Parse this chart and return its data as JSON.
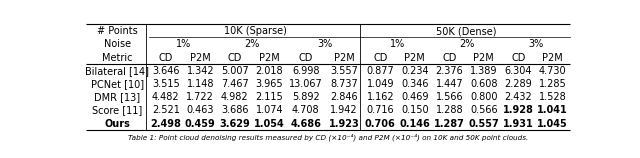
{
  "header_row1_left": "# Points",
  "header_row2_left": "Noise",
  "header_row3_left": "Metric",
  "span_10k_label": "10K (Sparse)",
  "span_50k_label": "50K (Dense)",
  "pct_labels": [
    "1%",
    "2%",
    "3%",
    "1%",
    "2%",
    "3%"
  ],
  "col_labels": [
    "CD",
    "P2M",
    "CD",
    "P2M",
    "CD",
    "P2M",
    "CD",
    "P2M",
    "CD",
    "P2M",
    "CD",
    "P2M"
  ],
  "rows": [
    [
      "Bilateral [14]",
      "3.646",
      "1.342",
      "5.007",
      "2.018",
      "6.998",
      "3.557",
      "0.877",
      "0.234",
      "2.376",
      "1.389",
      "6.304",
      "4.730"
    ],
    [
      "PCNet [10]",
      "3.515",
      "1.148",
      "7.467",
      "3.965",
      "13.067",
      "8.737",
      "1.049",
      "0.346",
      "1.447",
      "0.608",
      "2.289",
      "1.285"
    ],
    [
      "DMR [13]",
      "4.482",
      "1.722",
      "4.982",
      "2.115",
      "5.892",
      "2.846",
      "1.162",
      "0.469",
      "1.566",
      "0.800",
      "2.432",
      "1.528"
    ],
    [
      "Score [11]",
      "2.521",
      "0.463",
      "3.686",
      "1.074",
      "4.708",
      "1.942",
      "0.716",
      "0.150",
      "1.288",
      "0.566",
      "1.928",
      "1.041"
    ],
    [
      "Ours",
      "2.498",
      "0.459",
      "3.629",
      "1.054",
      "4.686",
      "1.923",
      "0.706",
      "0.146",
      "1.287",
      "0.557",
      "1.931",
      "1.045"
    ]
  ],
  "bold_ours": [
    0,
    1,
    2,
    3,
    4,
    5,
    6,
    7,
    8,
    9,
    10,
    11,
    12
  ],
  "bold_score": [
    11,
    12
  ],
  "caption": "Table 1: Point cloud denoising results measured by CD (×10⁻⁴) and P2M (×10⁻⁴) on 10K and 50K point clouds.",
  "bg_color": "#ffffff",
  "font_size": 7.0,
  "caption_font_size": 5.2
}
